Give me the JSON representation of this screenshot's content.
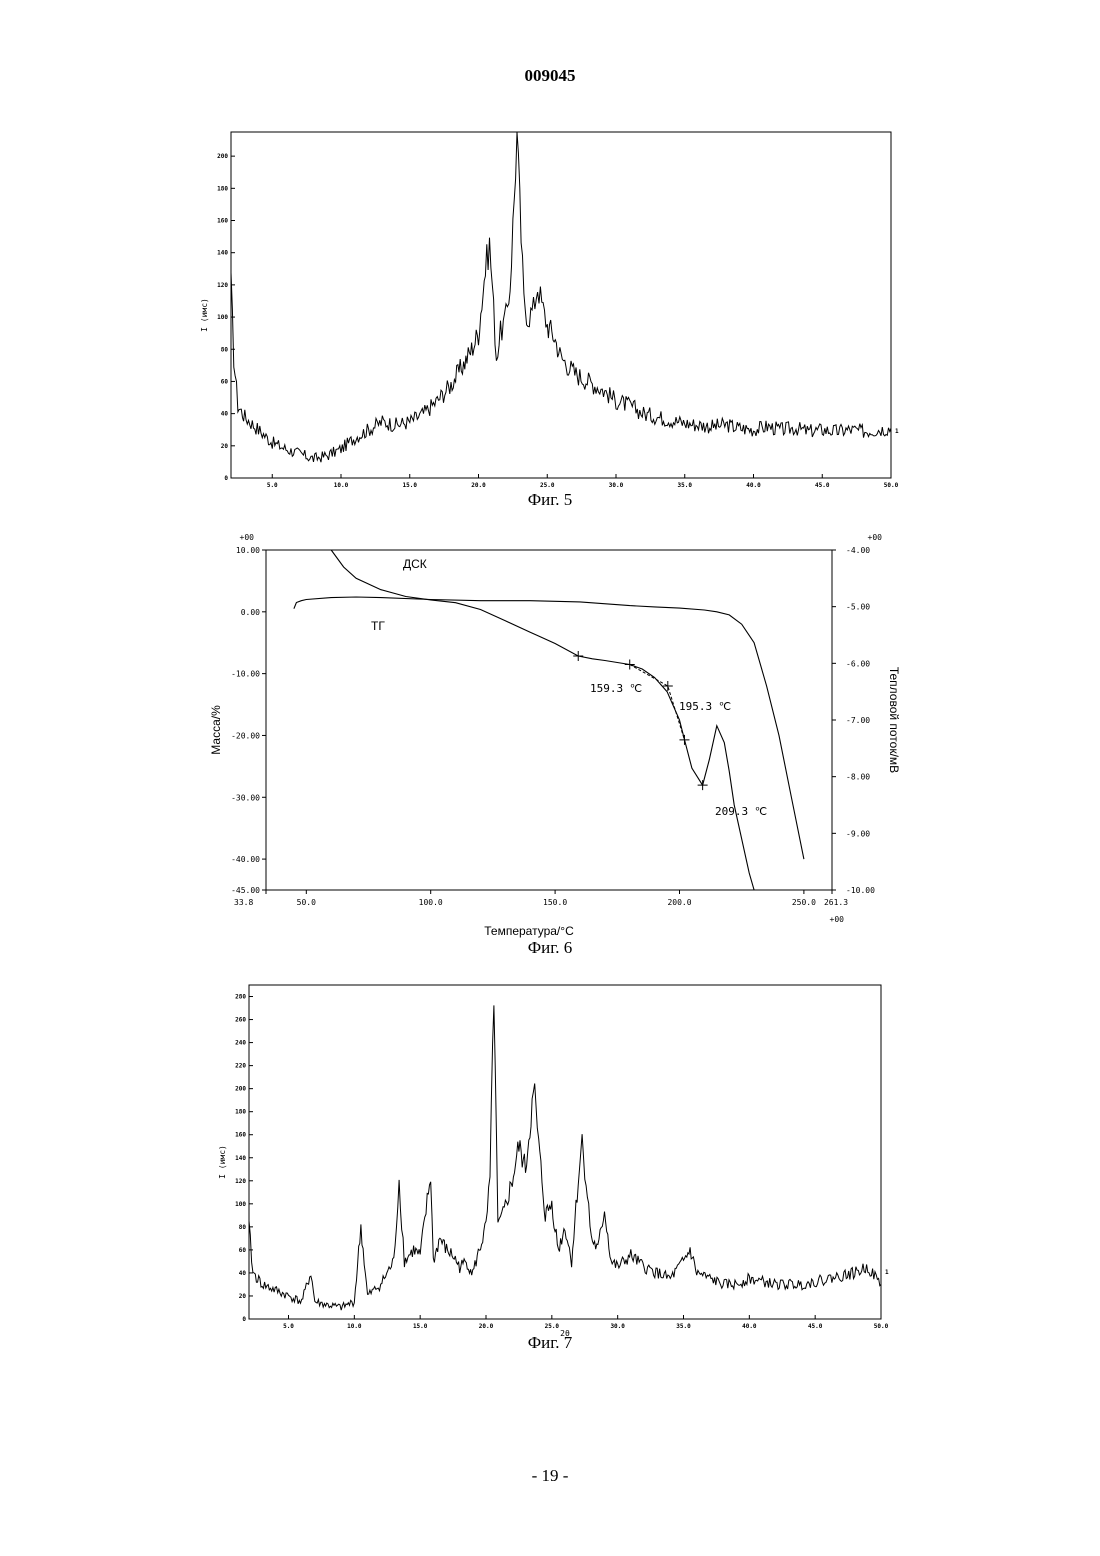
{
  "header": {
    "doc_number": "009045"
  },
  "footer": {
    "page_number": "- 19 -"
  },
  "figures": {
    "fig5": {
      "caption": "Фиг. 5"
    },
    "fig6": {
      "caption": "Фиг. 6"
    },
    "fig7": {
      "caption": "Фиг. 7"
    }
  },
  "chart_data": [
    {
      "id": "fig5",
      "type": "line",
      "title": "",
      "xlabel": "",
      "ylabel": "I (имс)",
      "xlim": [
        2.0,
        50.0
      ],
      "ylim": [
        0,
        215
      ],
      "x_ticks": [
        5.0,
        10.0,
        15.0,
        20.0,
        25.0,
        30.0,
        35.0,
        40.0,
        45.0,
        50.0
      ],
      "x_tick_labels": [
        "5.0",
        "10.0",
        "15.0",
        "20.0",
        "25.0",
        "30.0",
        "35.0",
        "40.0",
        "45.0",
        "50.0"
      ],
      "y_ticks": [
        0,
        20,
        40,
        60,
        80,
        100,
        120,
        140,
        160,
        180,
        200
      ],
      "y_tick_labels": [
        "0",
        "20",
        "40",
        "60",
        "80",
        "100",
        "120",
        "140",
        "160",
        "180",
        "200"
      ],
      "series": [
        {
          "x": [
            2.0,
            2.2,
            2.5,
            3.0,
            4.0,
            5.0,
            6.0,
            7.0,
            8.0,
            9.0,
            10.0,
            11.0,
            12.0,
            13.0,
            14.0,
            15.0,
            16.0,
            17.0,
            18.0,
            18.5,
            19.0,
            19.5,
            20.0,
            20.5,
            20.8,
            21.0,
            21.3,
            21.6,
            22.0,
            22.3,
            22.6,
            22.8,
            23.0,
            23.3,
            23.6,
            24.0,
            24.3,
            24.6,
            25.0,
            25.5,
            26.0,
            27.0,
            28.0,
            29.0,
            30.0,
            31.0,
            32.0,
            33.0,
            34.0,
            35.0,
            36.0,
            37.0,
            38.0,
            39.0,
            40.0,
            41.0,
            42.0,
            43.0,
            44.0,
            45.0,
            46.0,
            47.0,
            48.0,
            49.0,
            50.0
          ],
          "y": [
            120,
            75,
            45,
            38,
            30,
            22,
            18,
            15,
            12,
            14,
            18,
            25,
            30,
            35,
            33,
            35,
            40,
            48,
            58,
            65,
            72,
            80,
            90,
            130,
            145,
            120,
            75,
            90,
            100,
            120,
            175,
            215,
            170,
            110,
            100,
            105,
            120,
            108,
            95,
            88,
            75,
            65,
            60,
            55,
            48,
            45,
            40,
            38,
            36,
            34,
            33,
            32,
            33,
            31,
            30,
            32,
            30,
            31,
            29,
            30,
            29,
            30,
            29,
            30,
            31
          ]
        }
      ],
      "right_marker": "1"
    },
    {
      "id": "fig6",
      "type": "line",
      "title": "",
      "xlabel": "Температура/°C",
      "ylabel": "Масса/%",
      "y2label": "Тепловой поток/мВ",
      "xlim": [
        33.8,
        261.3
      ],
      "ylim": [
        -45.0,
        10.0
      ],
      "y2lim": [
        -10.0,
        -4.0
      ],
      "x_tick_labels": [
        "33.8",
        "50.0",
        "100.0",
        "150.0",
        "200.0",
        "250.0",
        "261.3"
      ],
      "x_ticks": [
        33.8,
        50.0,
        100.0,
        150.0,
        200.0,
        250.0,
        261.3
      ],
      "y_tick_labels": [
        "10.00",
        "0.00",
        "-10.00",
        "-20.00",
        "-30.00",
        "-40.00",
        "-45.00"
      ],
      "y_ticks": [
        10.0,
        0.0,
        -10.0,
        -20.0,
        -30.0,
        -40.0,
        -45.0
      ],
      "y2_tick_labels": [
        "-4.00",
        "-5.00",
        "-6.00",
        "-7.00",
        "-8.00",
        "-9.00",
        "-10.00"
      ],
      "y2_ticks": [
        -4.0,
        -5.0,
        -6.0,
        -7.0,
        -8.0,
        -9.0,
        -10.0
      ],
      "exponent_labels": {
        "left_top": "+00",
        "right_top": "+00",
        "bottom_right": "+00"
      },
      "series": [
        {
          "name": "ТГ",
          "axis": "left",
          "x": [
            45,
            46,
            48,
            50,
            60,
            70,
            80,
            100,
            120,
            140,
            160,
            180,
            190,
            200,
            210,
            215,
            220,
            225,
            230,
            235,
            240,
            245,
            250
          ],
          "y": [
            0.5,
            1.5,
            1.8,
            2.0,
            2.3,
            2.4,
            2.3,
            2.0,
            1.8,
            1.8,
            1.6,
            1.0,
            0.8,
            0.6,
            0.3,
            0.0,
            -0.5,
            -2.0,
            -5.0,
            -12.0,
            -20.0,
            -30.0,
            -40.0
          ]
        },
        {
          "name": "ДСК",
          "axis": "right",
          "x": [
            60,
            65,
            70,
            80,
            90,
            100,
            110,
            120,
            130,
            140,
            150,
            159.3,
            165,
            170,
            180,
            185,
            190,
            195,
            200,
            202,
            205,
            209.3,
            212,
            215,
            218,
            220,
            222,
            225,
            228,
            230
          ],
          "y": [
            -4.0,
            -4.3,
            -4.5,
            -4.7,
            -4.82,
            -4.88,
            -4.93,
            -5.05,
            -5.25,
            -5.45,
            -5.65,
            -5.87,
            -5.92,
            -5.95,
            -6.02,
            -6.1,
            -6.25,
            -6.5,
            -7.0,
            -7.35,
            -7.85,
            -8.15,
            -7.7,
            -7.1,
            -7.4,
            -7.9,
            -8.5,
            -9.1,
            -9.7,
            -10.0
          ]
        }
      ],
      "annotations": [
        "159.3 ℃",
        "195.3 ℃",
        "209.3 ℃"
      ],
      "series_labels": [
        "ДСК",
        "ТГ"
      ]
    },
    {
      "id": "fig7",
      "type": "line",
      "title": "",
      "xlabel": "2θ",
      "ylabel": "I (имс)",
      "xlim": [
        2.0,
        50.0
      ],
      "ylim": [
        0,
        290
      ],
      "x_ticks": [
        5.0,
        10.0,
        15.0,
        20.0,
        25.0,
        30.0,
        35.0,
        40.0,
        45.0,
        50.0
      ],
      "x_tick_labels": [
        "5.0",
        "10.0",
        "15.0",
        "20.0",
        "25.0",
        "30.0",
        "35.0",
        "40.0",
        "45.0",
        "50.0"
      ],
      "y_ticks": [
        0,
        20,
        40,
        60,
        80,
        100,
        120,
        140,
        160,
        180,
        200,
        220,
        240,
        260,
        280
      ],
      "y_tick_labels": [
        "0",
        "20",
        "40",
        "60",
        "80",
        "100",
        "120",
        "140",
        "160",
        "180",
        "200",
        "220",
        "240",
        "260",
        "280"
      ],
      "series": [
        {
          "x": [
            2.0,
            2.3,
            3.0,
            4.0,
            5.0,
            6.0,
            6.7,
            7.0,
            8.0,
            9.0,
            10.0,
            10.5,
            11.0,
            12.0,
            13.0,
            13.4,
            13.8,
            14.5,
            15.0,
            15.8,
            16.0,
            16.5,
            17.0,
            17.5,
            18.0,
            18.5,
            19.0,
            19.5,
            20.0,
            20.3,
            20.6,
            20.9,
            21.3,
            22.0,
            22.5,
            23.0,
            23.5,
            23.7,
            24.0,
            24.5,
            25.0,
            25.5,
            26.0,
            26.5,
            27.0,
            27.3,
            27.6,
            28.0,
            28.5,
            29.0,
            29.5,
            30.0,
            31.0,
            32.0,
            33.0,
            34.0,
            35.0,
            35.5,
            36.0,
            37.0,
            38.0,
            39.0,
            40.0,
            42.0,
            44.0,
            46.0,
            48.0,
            49.0,
            50.0
          ],
          "y": [
            80,
            40,
            30,
            25,
            20,
            15,
            40,
            15,
            12,
            10,
            15,
            80,
            20,
            30,
            50,
            120,
            50,
            60,
            55,
            125,
            50,
            70,
            60,
            55,
            45,
            50,
            40,
            60,
            80,
            120,
            285,
            80,
            90,
            120,
            150,
            130,
            185,
            195,
            150,
            90,
            100,
            60,
            80,
            50,
            120,
            155,
            120,
            70,
            60,
            95,
            50,
            45,
            55,
            45,
            40,
            35,
            50,
            60,
            40,
            35,
            30,
            30,
            35,
            30,
            30,
            35,
            40,
            45,
            30
          ]
        }
      ],
      "right_marker": "1"
    }
  ]
}
